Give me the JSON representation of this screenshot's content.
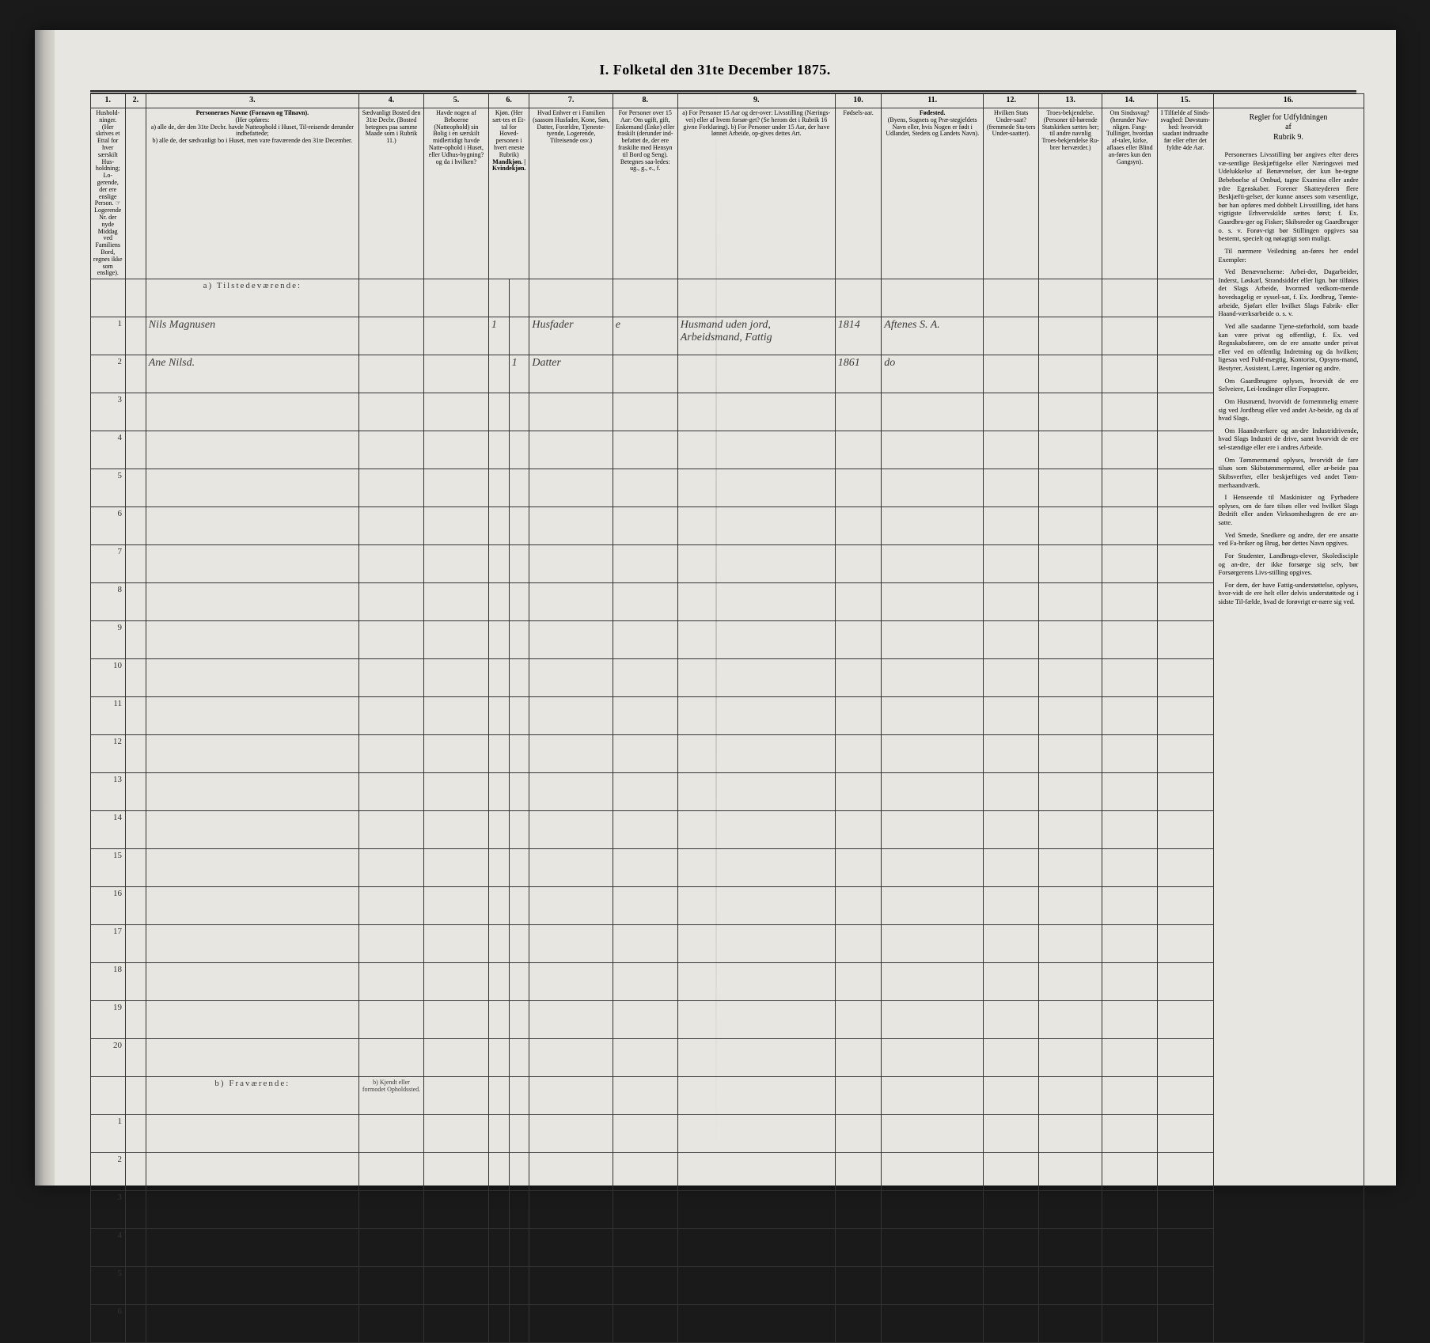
{
  "title": "I.  Folketal den 31te December 1875.",
  "columns": {
    "c1": {
      "num": "1.",
      "header": "Hushold-ninger. (Her skrives et Ettal for hver særskilt Hus-holdning; Lo-gerende, der ere enslige Person. ☞ Logerende Nr. der nyde Middag ved Familiens Bord, regnes ikke som enslige)."
    },
    "c2": {
      "num": "2.",
      "header": ""
    },
    "c3": {
      "num": "3.",
      "header_title": "Personernes Navne (Fornavn og Tilnavn).",
      "header_body": "(Her opføres:\na) alle de, der den 31te Decbr. havde Natteophold i Huset, Til-reisende derunder indbefattede;\nb) alle de, der sædvanligt bo i Huset, men vare fraværende den 31te December."
    },
    "c4": {
      "num": "4.",
      "header": "Sædvanligt Bosted den 31te Decbr. (Bosted betegnes paa samme Maade som i Rubrik 11.)"
    },
    "c5": {
      "num": "5.",
      "header": "Havde nogen af Beboerne (Natteophold) sin Bolig i en særskilt midlertidigt havde Natte-ophold i Huset, eller Udhus-bygning? og da i hvilken?"
    },
    "c6": {
      "num": "6.",
      "header": "Kjøn. (Her sæt-tes et Et-tal for Hoved-personen i hvert eneste Rubrik)",
      "sub_m": "Mandkjøn.",
      "sub_k": "Kvindekjøn."
    },
    "c7": {
      "num": "7.",
      "header": "Hvad Enhver er i Familien (saasom Husfader, Kone, Søn, Datter, Forældre, Tjeneste-tyende, Logerende, Tilreisende osv.)"
    },
    "c8": {
      "num": "8.",
      "header": "For Personer over 15 Aar: Om ugift, gift, Enkemand (Enke) eller fraskilt (derunder ind-befattet de, der ere fraskilte med Hensyn til Bord og Seng). Betegnes saa-ledes: ug., g., e., f."
    },
    "c9": {
      "num": "9.",
      "header": "a) For Personer 15 Aar og der-over: Livsstilling (Nærings-vei) eller af hvem forsør-get? (Se herom det i Rubrik 16 givne Forklaring).\nb) For Personer under 15 Aar, der have lønnet Arbeide, op-gives dettes Art."
    },
    "c10": {
      "num": "10.",
      "header": "Fødsels-aar."
    },
    "c11": {
      "num": "11.",
      "header_title": "Fødested.",
      "header_body": "(Byens, Sognets og Præ-stegjeldets Navn eller, hvis Nogen er født i Udlandet, Stedets og Landets Navn)."
    },
    "c12": {
      "num": "12.",
      "header": "Hvilken Stats Under-saat? (fremmede Sta-ters Under-saatter)."
    },
    "c13": {
      "num": "13.",
      "header": "Troes-bekjendelse. (Personer til-hørende Statskirken sættes her; til andre navnlig Troes-bekjendelse Ru-brer herværder.)"
    },
    "c14": {
      "num": "14.",
      "header": "Om Sindssvag? (herunder Nav-nligen. Fang-Tullinger, hvordan af-taler, kirke, aflaaes eller Blind an-føres kun den Gangsyn)."
    },
    "c15": {
      "num": "15.",
      "header": "I Tilfælde af Sinds-svaghed: Døvstum-hed: hvorvidt saadant indtraadte før eller efter det fyldte 4de Aar."
    }
  },
  "section_a": "a) Tilstedeværende:",
  "section_b": "b) Fraværende:",
  "section_b_col4": "b) Kjendt eller formodet Opholdssted.",
  "rows_a": [
    {
      "n": "1",
      "name": "Nils Magnusen",
      "c6m": "1",
      "c6k": "",
      "fam": "Husfader",
      "civ": "e",
      "occ": "Husmand uden jord, Arbeidsmand, Fattig",
      "year": "1814",
      "place": "Aftenes S. A.",
      "place2": "A."
    },
    {
      "n": "2",
      "name": "Ane Nilsd.",
      "c6m": "",
      "c6k": "1",
      "fam": "Datter",
      "civ": "",
      "occ": "",
      "year": "1861",
      "place": "do",
      "place2": ""
    },
    {
      "n": "3"
    },
    {
      "n": "4"
    },
    {
      "n": "5"
    },
    {
      "n": "6"
    },
    {
      "n": "7"
    },
    {
      "n": "8"
    },
    {
      "n": "9"
    },
    {
      "n": "10"
    },
    {
      "n": "11"
    },
    {
      "n": "12"
    },
    {
      "n": "13"
    },
    {
      "n": "14"
    },
    {
      "n": "15"
    },
    {
      "n": "16"
    },
    {
      "n": "17"
    },
    {
      "n": "18"
    },
    {
      "n": "19"
    },
    {
      "n": "20"
    }
  ],
  "rows_b": [
    {
      "n": "1"
    },
    {
      "n": "2"
    },
    {
      "n": "3"
    },
    {
      "n": "4"
    },
    {
      "n": "5"
    },
    {
      "n": "6"
    }
  ],
  "side": {
    "num": "16.",
    "title": "Regler for Udfyldningen\naf\nRubrik 9.",
    "paras": [
      "Personernes Livsstilling bør angives efter deres væ-sentlige Beskjæftigelse eller Næringsvei med Udelukkelse af Benævnelser, der kun be-tegne Bebeboelse af Ombud, tagne Examina eller andre ydre Egenskaber. Forener Skatteyderen flere Beskjæfti-gelser, der kunne ansees som væsentlige, bør han opføres med dobbelt Livsstilling, idet hans vigtigste Erhvervskilde sættes først; f. Ex. Gaardbru-ger og Fisker; Skibsreder og Gaardbruger o. s. v. Forøv-rigt bør Stillingen opgives saa bestemt, specielt og nøiagtigt som muligt.",
      "Til nærmere Veiledning an-føres her endel Exempler:",
      "Ved Benævnelserne: Arbei-der, Dagarbeider, Inderst, Løskarl, Strandsidder eller lign. bør tilføies det Slags Arbeide, hvormed vedkom-mende hovedsagelig er syssel-sat, f. Ex. Jordbrug, Tømte-arbeide, Sjøfart eller hvilket Slags Fabrik- eller Haand-værksarbeide o. s. v.",
      "Ved alle saadanne Tjene-steforhold, som baade kan være privat og offentligt, f. Ex. ved Regnskabsførere, om de ere ansatte under privat eller ved en offentlig Indretning og da hvilken; ligesaa ved Fuld-mægtig, Kontorist, Opsyns-mand, Bestyrer, Assistent, Lærer, Ingeniør og andre.",
      "Om Gaardbrugere oplyses, hvorvidt de ere Selveiere, Lei-lendinger eller Forpagtere.",
      "Om Husmænd, hvorvidt de fornemmelig ernære sig ved Jordbrug eller ved andet Ar-beide, og da af hvad Slags.",
      "Om Haandværkere og an-dre Industridrivende, hvad Slags Industri de drive, samt hvorvidt de ere sel-stændige eller ere i andres Arbeide.",
      "Om Tømmermænd oplyses, hvorvidt de fare tilsøs som Skibstømmermænd, eller ar-beide paa Skibsverfter, eller beskjæftiges ved andet Tøm-merhaandværk.",
      "I Henseende til Maskinister og Fyrbødere oplyses, om de fare tilsøs eller ved hvilket Slags Bedrift eller anden Virksomhedsgren de ere an-satte.",
      "Ved Smede, Snedkere og andre, der ere ansatte ved Fa-briker og Brug, bør dettes Navn opgives.",
      "For Studenter, Landbrugs-elever, Skoledisciple og an-dre, der ikke forsørge sig selv, bør Forsørgerens Livs-stilling opgives.",
      "For dem, der have Fattig-understøttelse, oplyses, hvor-vidt de ere helt eller delvis understøttede og i sidste Til-fælde, hvad de forøvrigt er-nære sig ved."
    ]
  },
  "layout": {
    "col_widths": [
      "38",
      "22",
      "230",
      "70",
      "70",
      "22",
      "22",
      "90",
      "70",
      "170",
      "50",
      "110",
      "60",
      "68",
      "60",
      "60"
    ]
  }
}
